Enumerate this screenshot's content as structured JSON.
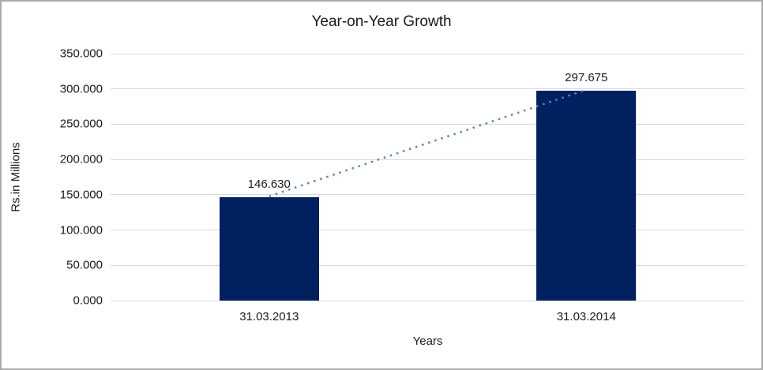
{
  "chart_data": {
    "type": "bar",
    "title": "Year-on-Year Growth",
    "xlabel": "Years",
    "ylabel": "Rs.in Millions",
    "categories": [
      "31.03.2013",
      "31.03.2014"
    ],
    "values": [
      146.63,
      297.675
    ],
    "data_labels": [
      "146.630",
      "297.675"
    ],
    "y_ticks": [
      "350.000",
      "300.000",
      "250.000",
      "200.000",
      "150.000",
      "100.000",
      "50.000",
      "0.000"
    ],
    "ylim": [
      0,
      350
    ],
    "grid": true,
    "legend": "none",
    "bar_color": "#002060",
    "gridline_color": "#d9d9d9",
    "axis_line_color": "#d9d9d9",
    "text_color": "#1a1a1a",
    "chart_border_color": "#ababab",
    "background": "#ffffff",
    "trendline": {
      "type": "linear",
      "style": "dotted",
      "color": "#4e86c8",
      "from_label": "146.630",
      "to_label": "297.675"
    }
  }
}
